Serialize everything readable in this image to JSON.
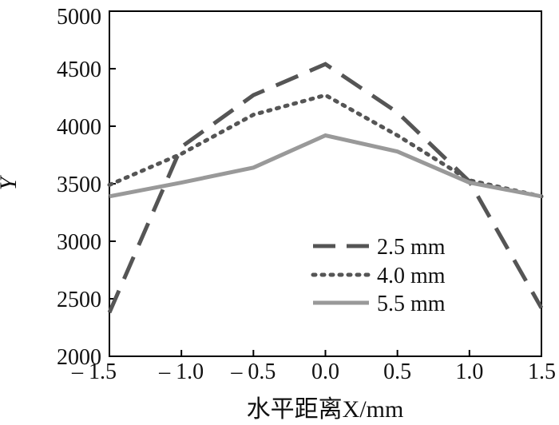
{
  "chart_data": {
    "type": "line",
    "title": "",
    "xlabel": "水平距离X/mm",
    "ylabel": "Y",
    "xlim": [
      -1.5,
      1.5
    ],
    "ylim": [
      2000,
      5000
    ],
    "xticks": [
      -1.5,
      -1.0,
      -0.5,
      0.0,
      0.5,
      1.0,
      1.5
    ],
    "xtick_labels": [
      "– 1.5",
      "– 1.0",
      "– 0.5",
      "0.0",
      "0.5",
      "1.0",
      "1.5"
    ],
    "yticks": [
      2000,
      2500,
      3000,
      3500,
      4000,
      4500,
      5000
    ],
    "ytick_labels": [
      "2000",
      "2500",
      "3000",
      "3500",
      "4000",
      "4500",
      "5000"
    ],
    "grid": false,
    "legend_position": "lower-right",
    "series": [
      {
        "name": "2.5 mm",
        "style": "dashed",
        "color": "#555555",
        "x": [
          -1.5,
          -1.0,
          -0.5,
          0.0,
          0.5,
          1.0,
          1.5
        ],
        "values": [
          2380,
          3820,
          4270,
          4540,
          4120,
          3520,
          2420
        ]
      },
      {
        "name": "4.0 mm",
        "style": "dotted",
        "color": "#555555",
        "x": [
          -1.5,
          -1.0,
          -0.5,
          0.0,
          0.5,
          1.0,
          1.5
        ],
        "values": [
          3490,
          3760,
          4100,
          4270,
          3920,
          3530,
          3390
        ]
      },
      {
        "name": "5.5 mm",
        "style": "solid",
        "color": "#999999",
        "x": [
          -1.5,
          -1.0,
          -0.5,
          0.0,
          0.5,
          1.0,
          1.5
        ],
        "values": [
          3390,
          3510,
          3640,
          3920,
          3780,
          3510,
          3390
        ]
      }
    ]
  }
}
